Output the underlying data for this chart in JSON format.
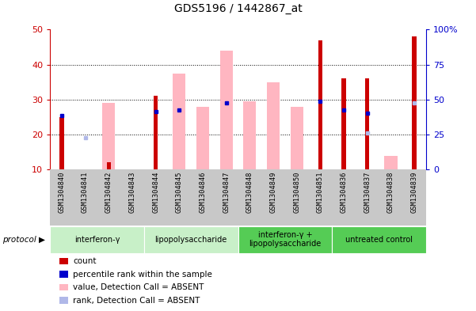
{
  "title": "GDS5196 / 1442867_at",
  "samples": [
    "GSM1304840",
    "GSM1304841",
    "GSM1304842",
    "GSM1304843",
    "GSM1304844",
    "GSM1304845",
    "GSM1304846",
    "GSM1304847",
    "GSM1304848",
    "GSM1304849",
    "GSM1304850",
    "GSM1304851",
    "GSM1304836",
    "GSM1304837",
    "GSM1304838",
    "GSM1304839"
  ],
  "count_red": [
    25,
    10,
    12,
    0,
    31,
    0,
    0,
    0,
    0,
    0,
    0,
    47,
    36,
    36,
    0,
    48
  ],
  "rank_blue": [
    25.5,
    0,
    0,
    0,
    26.5,
    27,
    0,
    29,
    0,
    0,
    0,
    29.5,
    27,
    26,
    0,
    0
  ],
  "value_pink": [
    0,
    0,
    29,
    0,
    0,
    37.5,
    28,
    44,
    29.5,
    35,
    28,
    0,
    0,
    0,
    14,
    0
  ],
  "rank_lightblue": [
    0,
    19,
    0,
    0,
    0,
    0,
    0,
    0,
    0,
    0,
    0,
    0,
    0,
    20.5,
    0,
    29
  ],
  "groups": [
    {
      "label": "interferon-γ",
      "start": 0,
      "end": 4
    },
    {
      "label": "lipopolysaccharide",
      "start": 4,
      "end": 8
    },
    {
      "label": "interferon-γ +\nlipopolysaccharide",
      "start": 8,
      "end": 12
    },
    {
      "label": "untreated control",
      "start": 12,
      "end": 16
    }
  ],
  "ylim_left": [
    10,
    50
  ],
  "ylim_right": [
    0,
    100
  ],
  "yticks_left": [
    10,
    20,
    30,
    40,
    50
  ],
  "yticks_right": [
    0,
    25,
    50,
    75,
    100
  ],
  "left_color": "#cc0000",
  "right_color": "#0000cc",
  "red_color": "#cc0000",
  "pink_color": "#ffb6c1",
  "blue_color": "#0000cc",
  "lightblue_color": "#b0b8e8",
  "group_color_light": "#c8f0c8",
  "group_color_dark": "#55cc55",
  "xlabel_bg": "#c8c8c8"
}
